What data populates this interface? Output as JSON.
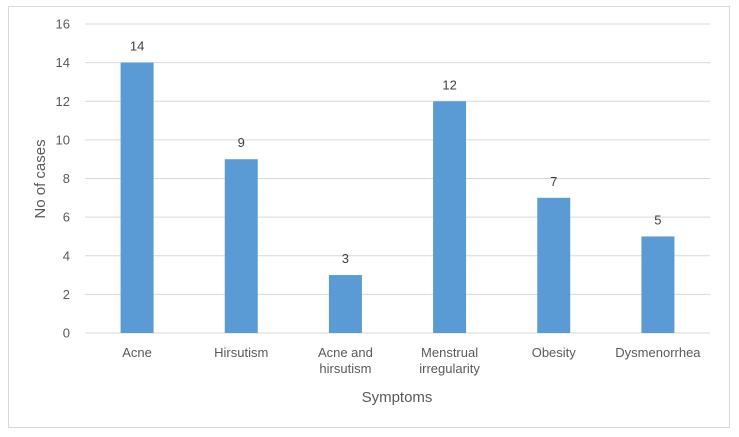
{
  "chart_data": {
    "type": "bar",
    "categories": [
      [
        "Acne"
      ],
      [
        "Hirsutism"
      ],
      [
        "Acne and",
        "hirsutism"
      ],
      [
        "Menstrual",
        "irregularity"
      ],
      [
        "Obesity"
      ],
      [
        "Dysmenorrhea"
      ]
    ],
    "values": [
      14,
      9,
      3,
      12,
      7,
      5
    ],
    "xlabel": "Symptoms",
    "ylabel": "No of cases",
    "ylim": [
      0,
      16
    ],
    "yticks": [
      0,
      2,
      4,
      6,
      8,
      10,
      12,
      14,
      16
    ],
    "grid": true,
    "bar_color": "#5b9bd5"
  }
}
